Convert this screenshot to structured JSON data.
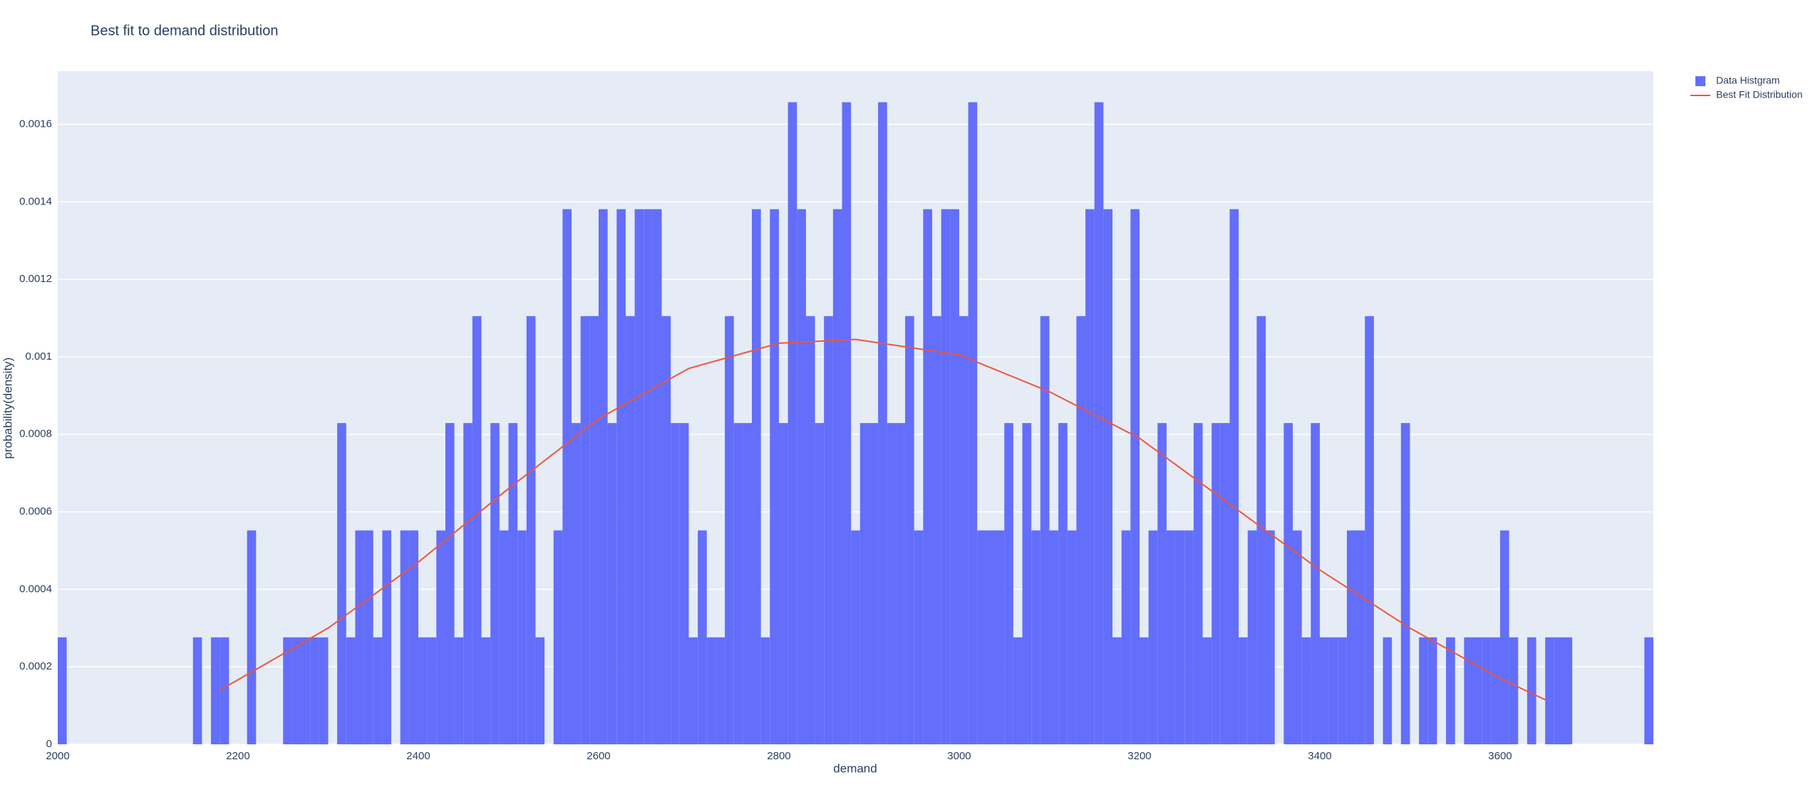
{
  "chart_data": {
    "type": "histogram",
    "title": "Best fit to demand distribution",
    "x_label": "demand",
    "y_label": "probability(density)",
    "bins": [
      2000,
      2010,
      2020,
      2030,
      2040,
      2050,
      2060,
      2070,
      2080,
      2090,
      2100,
      2110,
      2120,
      2130,
      2140,
      2150,
      2160,
      2170,
      2180,
      2190,
      2200,
      2210,
      2220,
      2230,
      2240,
      2250,
      2260,
      2270,
      2280,
      2290,
      2300,
      2310,
      2320,
      2330,
      2340,
      2350,
      2360,
      2370,
      2380,
      2390,
      2400,
      2410,
      2420,
      2430,
      2440,
      2450,
      2460,
      2470,
      2480,
      2490,
      2500,
      2510,
      2520,
      2530,
      2540,
      2550,
      2560,
      2570,
      2580,
      2590,
      2600,
      2610,
      2620,
      2630,
      2640,
      2650,
      2660,
      2670,
      2680,
      2690,
      2700,
      2710,
      2720,
      2730,
      2740,
      2750,
      2760,
      2770,
      2780,
      2790,
      2800,
      2810,
      2820,
      2830,
      2840,
      2850,
      2860,
      2870,
      2880,
      2890,
      2900,
      2910,
      2920,
      2930,
      2940,
      2950,
      2960,
      2970,
      2980,
      2990,
      3000,
      3010,
      3020,
      3030,
      3040,
      3050,
      3060,
      3070,
      3080,
      3090,
      3100,
      3110,
      3120,
      3130,
      3140,
      3150,
      3160,
      3170,
      3180,
      3190,
      3200,
      3210,
      3220,
      3230,
      3240,
      3250,
      3260,
      3270,
      3280,
      3290,
      3300,
      3310,
      3320,
      3330,
      3340,
      3350,
      3360,
      3370,
      3380,
      3390,
      3400,
      3410,
      3420,
      3430,
      3440,
      3450,
      3460,
      3470,
      3480,
      3490,
      3500,
      3510,
      3520,
      3530,
      3540,
      3550,
      3560,
      3570,
      3580,
      3590,
      3600,
      3610,
      3620,
      3630,
      3640,
      3650,
      3660,
      3670,
      3680,
      3690,
      3700,
      3710,
      3720,
      3730,
      3740,
      3750,
      3760,
      3770
    ],
    "series": [
      {
        "name": "Data Histgram",
        "color": "#636efa",
        "values": [
          0.000276,
          0,
          0,
          0,
          0,
          0,
          0,
          0,
          0,
          0,
          0,
          0,
          0,
          0,
          0,
          0.000276,
          0,
          0.000276,
          0.000276,
          0,
          0,
          0.000552,
          0,
          0,
          0,
          0.000276,
          0.000276,
          0.000276,
          0.000276,
          0.000276,
          0,
          0.000829,
          0.000276,
          0.000552,
          0.000552,
          0.000276,
          0.000552,
          0,
          0.000552,
          0.000552,
          0.000276,
          0.000276,
          0.000552,
          0.000829,
          0.000276,
          0.000829,
          0.001105,
          0.000276,
          0.000829,
          0.000552,
          0.000829,
          0.000552,
          0.001105,
          0.000276,
          0,
          0.000552,
          0.001381,
          0.000829,
          0.001105,
          0.001105,
          0.001381,
          0.000829,
          0.001381,
          0.001105,
          0.001381,
          0.001381,
          0.001381,
          0.001105,
          0.000829,
          0.000829,
          0.000276,
          0.000552,
          0.000276,
          0.000276,
          0.001105,
          0.000829,
          0.000829,
          0.001381,
          0.000276,
          0.001381,
          0.000829,
          0.001657,
          0.001381,
          0.001105,
          0.000829,
          0.001105,
          0.001381,
          0.001657,
          0.000552,
          0.000829,
          0.000829,
          0.001657,
          0.000829,
          0.000829,
          0.001105,
          0.000552,
          0.001381,
          0.001105,
          0.001381,
          0.001381,
          0.001105,
          0.001657,
          0.000552,
          0.000552,
          0.000552,
          0.000829,
          0.000276,
          0.000829,
          0.000552,
          0.001105,
          0.000552,
          0.000829,
          0.000552,
          0.001105,
          0.001381,
          0.001657,
          0.001381,
          0.000276,
          0.000552,
          0.001381,
          0.000276,
          0.000552,
          0.000829,
          0.000552,
          0.000552,
          0.000552,
          0.000829,
          0.000276,
          0.000829,
          0.000829,
          0.001381,
          0.000276,
          0.000552,
          0.001105,
          0.000552,
          0,
          0.000829,
          0.000552,
          0.000276,
          0.000829,
          0.000276,
          0.000276,
          0.000276,
          0.000552,
          0.000552,
          0.001105,
          0,
          0.000276,
          0,
          0.000829,
          0,
          0.000276,
          0.000276,
          0,
          0.000276,
          0,
          0.000276,
          0.000276,
          0.000276,
          0.000276,
          0.000552,
          0.000276,
          0,
          0.000276,
          0,
          0.000276,
          0.000276,
          0.000276,
          0,
          0,
          0,
          0,
          0,
          0,
          0,
          0,
          0.000276
        ]
      },
      {
        "name": "Best Fit Distribution",
        "type": "line",
        "color": "#ef553b",
        "x": [
          2180,
          2300,
          2400,
          2500,
          2600,
          2700,
          2800,
          2885,
          3000,
          3100,
          3200,
          3300,
          3400,
          3500,
          3600,
          3650
        ],
        "values": [
          0.00014,
          0.0003,
          0.00047,
          0.00066,
          0.00084,
          0.00097,
          0.001035,
          0.001045,
          0.001005,
          0.00091,
          0.00079,
          0.00062,
          0.00045,
          0.0003,
          0.00017,
          0.000115
        ]
      }
    ],
    "xlim": [
      2000,
      3770
    ],
    "ylim": [
      0,
      0.001737
    ],
    "xticks": [
      2000,
      2200,
      2400,
      2600,
      2800,
      3000,
      3200,
      3400,
      3600
    ],
    "yticks": [
      0,
      0.0002,
      0.0004,
      0.0006,
      0.0008,
      0.001,
      0.0012,
      0.0014,
      0.0016
    ],
    "grid": true,
    "legend": "right"
  }
}
